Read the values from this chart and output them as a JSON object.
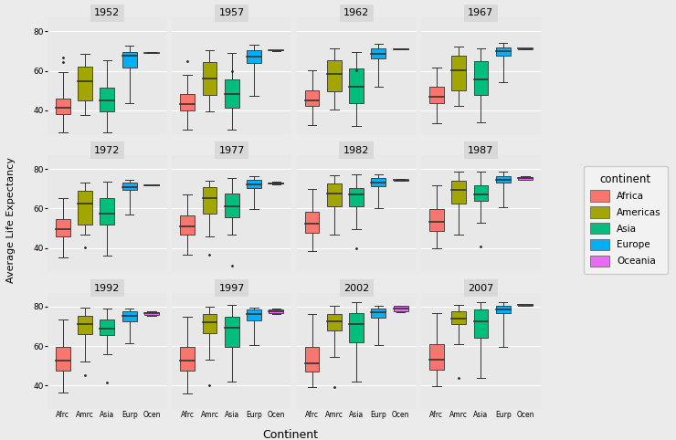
{
  "years": [
    1952,
    1957,
    1962,
    1967,
    1972,
    1977,
    1982,
    1987,
    1992,
    1997,
    2002,
    2007
  ],
  "continents": [
    "Africa",
    "Americas",
    "Asia",
    "Europe",
    "Oceania"
  ],
  "continent_colors": {
    "Africa": "#F8766D",
    "Americas": "#A3A500",
    "Asia": "#00BF7D",
    "Europe": "#00B0F6",
    "Oceania": "#E76BF3"
  },
  "continent_abbrevs": [
    "Afrc",
    "Amrc",
    "Asia",
    "Eurp",
    "Ocen"
  ],
  "background_color": "#EBEBEB",
  "panel_background": "#E8E8E8",
  "grid_color": "#FFFFFF",
  "strip_bg": "#D9D9D9",
  "ylabel": "Average Life Expectancy",
  "xlabel": "Continent",
  "legend_title": "continent",
  "ylim": [
    28,
    87
  ],
  "yticks": [
    40,
    60,
    80
  ],
  "box_width": 0.65,
  "figsize": [
    7.4,
    4.82
  ],
  "dpi": 100
}
